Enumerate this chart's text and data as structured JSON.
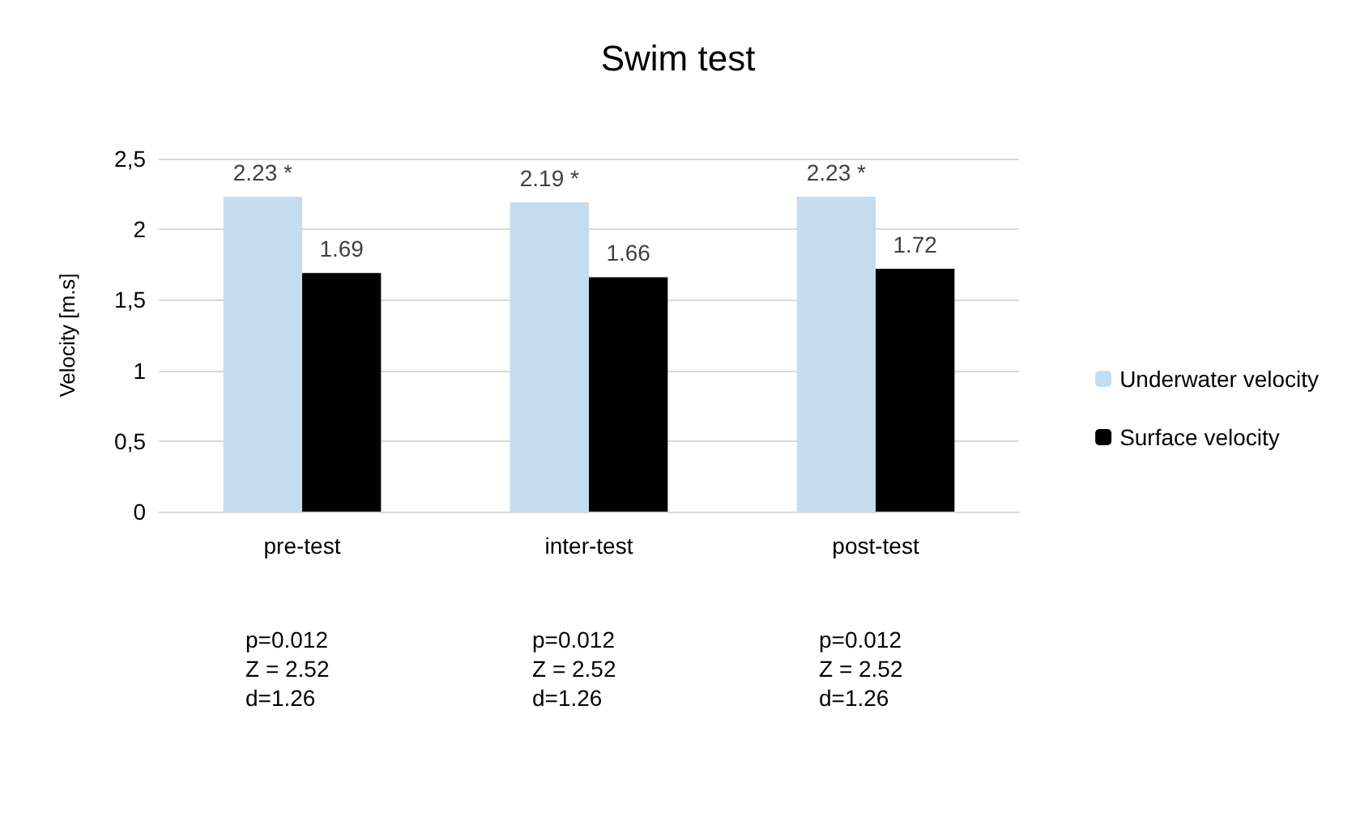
{
  "chart_data": {
    "type": "bar",
    "title": "Swim test",
    "ylabel": "Velocity [m.s]",
    "categories": [
      "pre-test",
      "inter-test",
      "post-test"
    ],
    "series": [
      {
        "name": "Underwater velocity",
        "color": "#c5dcef",
        "values": [
          2.23,
          2.19,
          2.23
        ],
        "value_labels": [
          "2.23 *",
          "2.19 *",
          "2.23 *"
        ]
      },
      {
        "name": "Surface velocity",
        "color": "#000000",
        "values": [
          1.69,
          1.66,
          1.72
        ],
        "value_labels": [
          "1.69",
          "1.66",
          "1.72"
        ]
      }
    ],
    "ylim": [
      0,
      2.5
    ],
    "yticks": [
      0,
      {
        "value": 0.5,
        "label": "0,5"
      },
      1,
      {
        "value": 1.5,
        "label": "1,5"
      },
      2,
      {
        "value": 2.5,
        "label": "2,5"
      }
    ],
    "grid": "y",
    "legend": "right",
    "annotations": [
      "p=0.012\nZ = 2.52\nd=1.26",
      "p=0.012\nZ = 2.52\nd=1.26",
      "p=0.012\nZ = 2.52\nd=1.26"
    ]
  }
}
